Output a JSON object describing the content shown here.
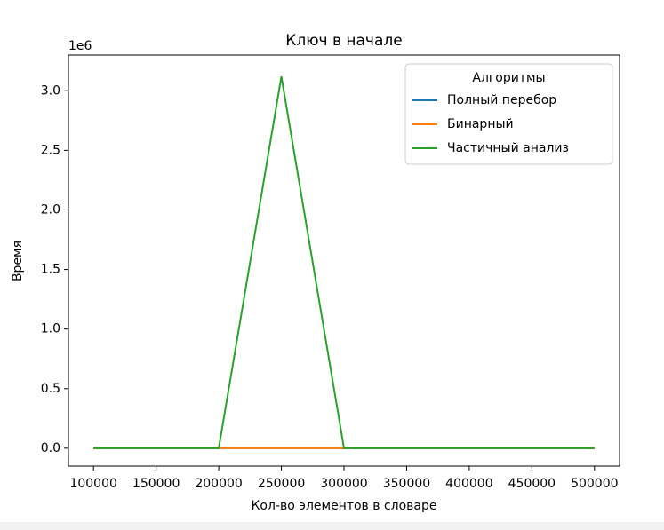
{
  "chart_data": {
    "type": "line",
    "title": "Ключ в начале",
    "x_label": "Кол-во элементов в словаре",
    "y_label": "Время",
    "y_offset_label": "1e6",
    "x": [
      100000,
      150000,
      200000,
      250000,
      300000,
      350000,
      400000,
      450000,
      500000
    ],
    "series": [
      {
        "name": "Полный перебор",
        "color": "#1f77b4",
        "values": [
          0,
          0,
          0,
          0,
          0,
          0,
          0,
          0,
          0
        ]
      },
      {
        "name": "Бинарный",
        "color": "#ff7f0e",
        "values": [
          0,
          0,
          0,
          0,
          0,
          0,
          0,
          0,
          0
        ]
      },
      {
        "name": "Частичный анализ",
        "color": "#2ca02c",
        "values": [
          0,
          0,
          0,
          3120000,
          0,
          0,
          0,
          0,
          0
        ]
      }
    ],
    "xlim": [
      80000,
      520000
    ],
    "xticks": [
      100000,
      150000,
      200000,
      250000,
      300000,
      350000,
      400000,
      450000,
      500000
    ],
    "ylim": [
      -150000,
      3300000
    ],
    "yticks": [
      {
        "value": 0,
        "label": "0.0"
      },
      {
        "value": 500000,
        "label": "0.5"
      },
      {
        "value": 1000000,
        "label": "1.0"
      },
      {
        "value": 1500000,
        "label": "1.5"
      },
      {
        "value": 2000000,
        "label": "2.0"
      },
      {
        "value": 2500000,
        "label": "2.5"
      },
      {
        "value": 3000000,
        "label": "3.0"
      }
    ],
    "legend_title": "Алгоритмы",
    "legend": "upper right",
    "grid": false
  }
}
